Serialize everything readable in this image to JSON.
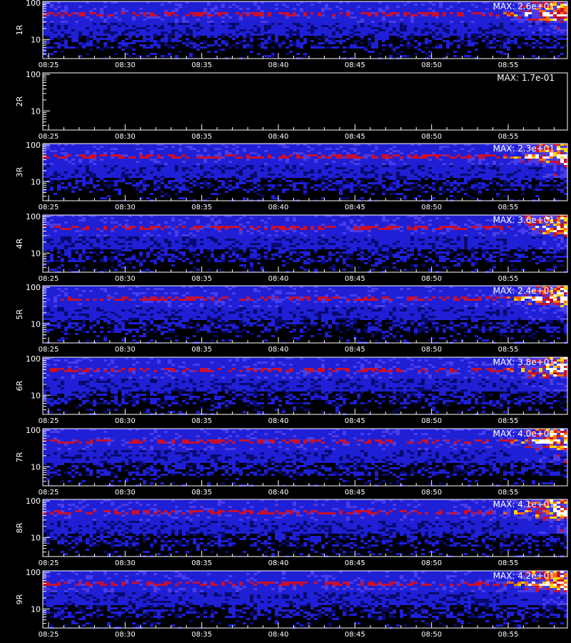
{
  "chart_data": {
    "type": "heatmap",
    "x_ticks": [
      "08:25",
      "08:30",
      "08:35",
      "08:40",
      "08:45",
      "08:50",
      "08:55"
    ],
    "y_ticks": [
      "100",
      "10"
    ],
    "y_scale": "log",
    "ylim": [
      3,
      110
    ],
    "colormap": [
      "#000000",
      "#0a0a6e",
      "#1f1fd6",
      "#4a3ce8",
      "#c8102e",
      "#ff6a00",
      "#ffd400",
      "#ffffff"
    ],
    "axis_color": "#ffffff",
    "panels": [
      {
        "label": "1R",
        "max_label": "MAX: 2.6e+01",
        "data_present": true
      },
      {
        "label": "2R",
        "max_label": "MAX: 1.7e-01",
        "data_present": false
      },
      {
        "label": "3R",
        "max_label": "MAX: 2.3e+01",
        "data_present": true
      },
      {
        "label": "4R",
        "max_label": "MAX: 3.6e+01",
        "data_present": true
      },
      {
        "label": "5R",
        "max_label": "MAX: 2.4e+01",
        "data_present": true
      },
      {
        "label": "6R",
        "max_label": "MAX: 3.8e+01",
        "data_present": true
      },
      {
        "label": "7R",
        "max_label": "MAX: 4.0e+00",
        "data_present": true
      },
      {
        "label": "8R",
        "max_label": "MAX: 4.1e+01",
        "data_present": true
      },
      {
        "label": "9R",
        "max_label": "MAX: 4.2e+01",
        "data_present": true
      }
    ]
  }
}
